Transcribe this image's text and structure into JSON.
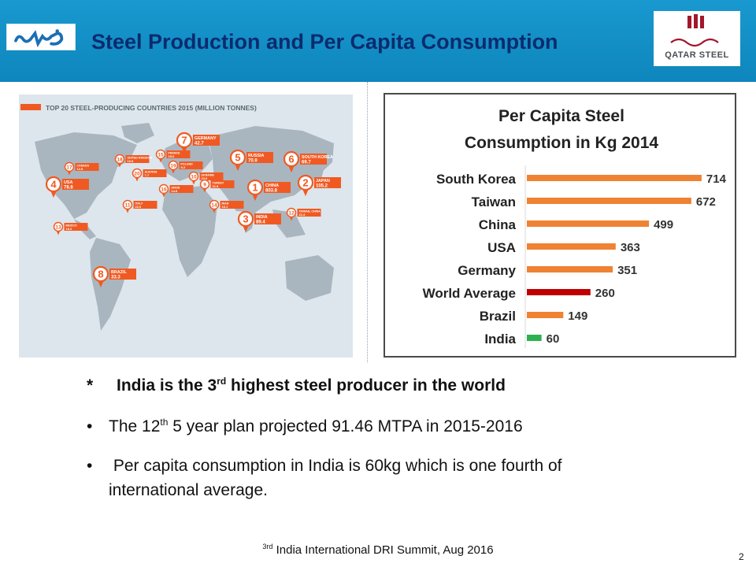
{
  "header": {
    "title": "Steel Production and Per Capita Consumption",
    "right_logo_text": "QATAR STEEL"
  },
  "map": {
    "title": "TOP 20 STEEL-PRODUCING COUNTRIES 2015 (MILLION TONNES)",
    "accent_color": "#f05a22",
    "markers": [
      {
        "rank": "1",
        "country": "CHINA",
        "value": "803.8"
      },
      {
        "rank": "2",
        "country": "JAPAN",
        "value": "105.2"
      },
      {
        "rank": "3",
        "country": "INDIA",
        "value": "89.4"
      },
      {
        "rank": "4",
        "country": "USA",
        "value": "78.8"
      },
      {
        "rank": "5",
        "country": "RUSSIA",
        "value": "70.9"
      },
      {
        "rank": "6",
        "country": "SOUTH KOREA",
        "value": "69.7"
      },
      {
        "rank": "7",
        "country": "GERMANY",
        "value": "42.7"
      },
      {
        "rank": "8",
        "country": "BRAZIL",
        "value": "33.3"
      },
      {
        "rank": "9",
        "country": "TURKEY",
        "value": "31.5"
      },
      {
        "rank": "10",
        "country": "UKRAINE",
        "value": "23.0"
      },
      {
        "rank": "11",
        "country": "ITALY",
        "value": "22.0"
      },
      {
        "rank": "12",
        "country": "TAIWAN, CHINA",
        "value": "21.4"
      },
      {
        "rank": "13",
        "country": "MEXICO",
        "value": "18.2"
      },
      {
        "rank": "14",
        "country": "IRAN",
        "value": "16.1"
      },
      {
        "rank": "15",
        "country": "FRANCE",
        "value": "15.0"
      },
      {
        "rank": "16",
        "country": "SPAIN",
        "value": "14.8"
      },
      {
        "rank": "17",
        "country": "CANADA",
        "value": "12.5"
      },
      {
        "rank": "18",
        "country": "UNITED KINGDOM",
        "value": "10.9"
      },
      {
        "rank": "19",
        "country": "POLAND",
        "value": "9.2"
      },
      {
        "rank": "20",
        "country": "AUSTRIA",
        "value": "7.7"
      }
    ]
  },
  "chart_data": {
    "type": "bar",
    "orientation": "horizontal",
    "title_line1": "Per Capita Steel",
    "title_line2": "Consumption in Kg 2014",
    "categories": [
      "South Korea",
      "Taiwan",
      "China",
      "USA",
      "Germany",
      "World Average",
      "Brazil",
      "India"
    ],
    "values": [
      714,
      672,
      499,
      363,
      351,
      260,
      149,
      60
    ],
    "colors": [
      "#ef8233",
      "#ef8233",
      "#ef8233",
      "#ef8233",
      "#ef8233",
      "#c00000",
      "#ef8233",
      "#2eb14f"
    ],
    "xlim": [
      0,
      740
    ],
    "grid": false,
    "legend": "none"
  },
  "bullets": {
    "b1_star": "*",
    "b1_pre": "India is the 3",
    "b1_sup": "rd",
    "b1_post": " highest steel producer in the world",
    "b2_pre": "The 12",
    "b2_sup": "th",
    "b2_post": " 5 year plan projected 91.46 MTPA in 2015-2016",
    "b3_line1": " Per capita consumption in India is 60kg which is one fourth of",
    "b3_line2": "international average.",
    "bullet_glyph": "•"
  },
  "footer": {
    "sup": "3rd",
    "text": " India International DRI Summit, Aug 2016",
    "page_number": "2"
  }
}
